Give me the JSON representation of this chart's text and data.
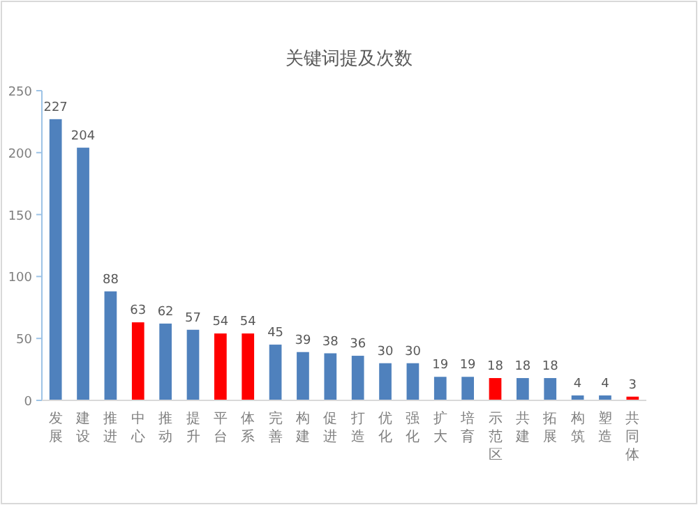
{
  "chart_data": {
    "type": "bar",
    "title": "关键词提及次数",
    "categories": [
      "发展",
      "建设",
      "推进",
      "中心",
      "推动",
      "提升",
      "平台",
      "体系",
      "完善",
      "构建",
      "促进",
      "打造",
      "优化",
      "强化",
      "扩大",
      "培育",
      "示范区",
      "共建",
      "拓展",
      "构筑",
      "塑造",
      "共同体"
    ],
    "values": [
      227,
      204,
      88,
      63,
      62,
      57,
      54,
      54,
      45,
      39,
      38,
      36,
      30,
      30,
      19,
      19,
      18,
      18,
      18,
      4,
      4,
      3
    ],
    "colors": [
      "#4f81bd",
      "#4f81bd",
      "#4f81bd",
      "#ff0000",
      "#4f81bd",
      "#4f81bd",
      "#ff0000",
      "#ff0000",
      "#4f81bd",
      "#4f81bd",
      "#4f81bd",
      "#4f81bd",
      "#4f81bd",
      "#4f81bd",
      "#4f81bd",
      "#4f81bd",
      "#ff0000",
      "#4f81bd",
      "#4f81bd",
      "#4f81bd",
      "#4f81bd",
      "#ff0000"
    ],
    "ylim": [
      0,
      250
    ],
    "yticks": [
      0,
      50,
      100,
      150,
      200,
      250
    ],
    "grid": false,
    "data_labels": true
  }
}
